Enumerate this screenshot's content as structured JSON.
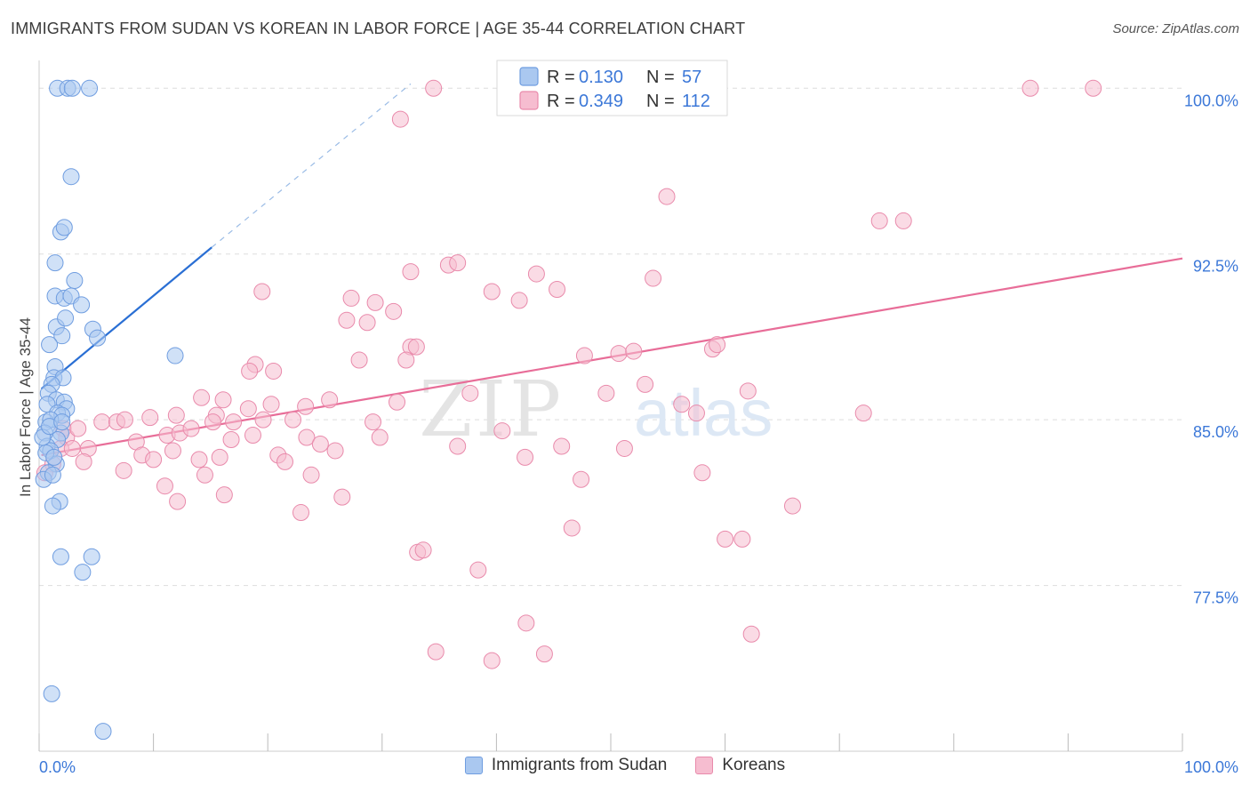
{
  "header": {
    "title": "IMMIGRANTS FROM SUDAN VS KOREAN IN LABOR FORCE | AGE 35-44 CORRELATION CHART",
    "source": "Source: ZipAtlas.com"
  },
  "watermark": {
    "zip": "ZIP",
    "atlas": "atlas"
  },
  "colors": {
    "blue_fill": "#aac8f0",
    "blue_stroke": "#6f9de0",
    "blue_line": "#2a6fd4",
    "pink_fill": "#f6bdd0",
    "pink_stroke": "#e98aab",
    "pink_line": "#e86d98",
    "axis_label": "#3c78d8",
    "grid": "#dddddd"
  },
  "chart_data": {
    "type": "scatter",
    "title": "IMMIGRANTS FROM SUDAN VS KOREAN IN LABOR FORCE | AGE 35-44 CORRELATION CHART",
    "xlabel": "",
    "ylabel": "In Labor Force | Age 35-44",
    "xlim": [
      0,
      100
    ],
    "ylim": [
      70.0,
      101.5
    ],
    "x_tick_labels": {
      "min": "0.0%",
      "max": "100.0%"
    },
    "y_ticks": [
      {
        "value": 100.0,
        "label": "100.0%"
      },
      {
        "value": 92.5,
        "label": "92.5%"
      },
      {
        "value": 85.0,
        "label": "85.0%"
      },
      {
        "value": 77.5,
        "label": "77.5%"
      }
    ],
    "legend_stats": [
      {
        "r_label": "R =",
        "r": "0.130",
        "n_label": "N =",
        "n": "57",
        "series": "Immigrants from Sudan"
      },
      {
        "r_label": "R =",
        "r": "0.349",
        "n_label": "N =",
        "n": "112",
        "series": "Koreans"
      }
    ],
    "series": [
      {
        "name": "Immigrants from Sudan",
        "color": "blue",
        "points": [
          [
            1.6,
            100.0
          ],
          [
            2.5,
            100.0
          ],
          [
            2.9,
            100.0
          ],
          [
            4.4,
            100.0
          ],
          [
            2.8,
            96.0
          ],
          [
            1.9,
            93.5
          ],
          [
            2.2,
            93.7
          ],
          [
            1.4,
            92.1
          ],
          [
            3.1,
            91.3
          ],
          [
            1.4,
            90.6
          ],
          [
            2.2,
            90.5
          ],
          [
            2.8,
            90.6
          ],
          [
            3.7,
            90.2
          ],
          [
            1.5,
            89.2
          ],
          [
            2.3,
            89.6
          ],
          [
            2.0,
            88.8
          ],
          [
            4.7,
            89.1
          ],
          [
            5.1,
            88.7
          ],
          [
            0.9,
            88.4
          ],
          [
            11.9,
            87.9
          ],
          [
            1.4,
            87.4
          ],
          [
            1.3,
            86.9
          ],
          [
            2.1,
            86.9
          ],
          [
            1.1,
            86.6
          ],
          [
            0.8,
            86.2
          ],
          [
            1.5,
            85.9
          ],
          [
            2.2,
            85.8
          ],
          [
            2.4,
            85.5
          ],
          [
            0.7,
            85.7
          ],
          [
            1.6,
            85.3
          ],
          [
            2.0,
            85.2
          ],
          [
            0.6,
            84.9
          ],
          [
            1.0,
            85.0
          ],
          [
            1.9,
            84.4
          ],
          [
            1.6,
            84.1
          ],
          [
            0.5,
            84.4
          ],
          [
            0.7,
            83.8
          ],
          [
            1.0,
            83.6
          ],
          [
            1.5,
            83.0
          ],
          [
            0.8,
            82.6
          ],
          [
            0.4,
            82.3
          ],
          [
            1.2,
            82.5
          ],
          [
            0.6,
            83.5
          ],
          [
            0.3,
            84.2
          ],
          [
            0.9,
            84.7
          ],
          [
            2.0,
            84.9
          ],
          [
            1.3,
            83.3
          ],
          [
            1.8,
            81.3
          ],
          [
            1.2,
            81.1
          ],
          [
            1.9,
            78.8
          ],
          [
            4.6,
            78.8
          ],
          [
            3.8,
            78.1
          ],
          [
            1.1,
            72.6
          ],
          [
            5.6,
            70.9
          ]
        ]
      },
      {
        "name": "Koreans",
        "color": "pink",
        "points": [
          [
            34.5,
            100.0
          ],
          [
            55.2,
            100.0
          ],
          [
            86.7,
            100.0
          ],
          [
            92.2,
            100.0
          ],
          [
            31.6,
            98.6
          ],
          [
            54.9,
            95.1
          ],
          [
            73.5,
            94.0
          ],
          [
            75.6,
            94.0
          ],
          [
            35.8,
            92.0
          ],
          [
            36.6,
            92.1
          ],
          [
            43.5,
            91.6
          ],
          [
            32.5,
            91.7
          ],
          [
            53.7,
            91.4
          ],
          [
            39.6,
            90.8
          ],
          [
            45.3,
            90.9
          ],
          [
            19.5,
            90.8
          ],
          [
            27.3,
            90.5
          ],
          [
            29.4,
            90.3
          ],
          [
            42.0,
            90.4
          ],
          [
            31.0,
            89.9
          ],
          [
            28.7,
            89.4
          ],
          [
            26.9,
            89.5
          ],
          [
            32.5,
            88.3
          ],
          [
            33.0,
            88.3
          ],
          [
            47.7,
            87.9
          ],
          [
            50.7,
            88.0
          ],
          [
            52.0,
            88.1
          ],
          [
            58.9,
            88.2
          ],
          [
            59.3,
            88.4
          ],
          [
            28.0,
            87.7
          ],
          [
            32.1,
            87.7
          ],
          [
            18.9,
            87.5
          ],
          [
            18.4,
            87.2
          ],
          [
            20.5,
            87.2
          ],
          [
            53.0,
            86.6
          ],
          [
            62.0,
            86.3
          ],
          [
            37.7,
            86.2
          ],
          [
            49.6,
            86.2
          ],
          [
            31.3,
            85.8
          ],
          [
            25.4,
            85.9
          ],
          [
            16.1,
            85.9
          ],
          [
            14.2,
            86.0
          ],
          [
            18.3,
            85.5
          ],
          [
            20.3,
            85.7
          ],
          [
            15.5,
            85.2
          ],
          [
            23.3,
            85.6
          ],
          [
            56.2,
            85.7
          ],
          [
            57.5,
            85.3
          ],
          [
            72.1,
            85.3
          ],
          [
            12.0,
            85.2
          ],
          [
            5.5,
            84.9
          ],
          [
            6.8,
            84.9
          ],
          [
            7.5,
            85.0
          ],
          [
            9.7,
            85.1
          ],
          [
            15.2,
            84.9
          ],
          [
            17.0,
            84.9
          ],
          [
            19.6,
            85.0
          ],
          [
            22.2,
            85.0
          ],
          [
            29.2,
            84.9
          ],
          [
            23.4,
            84.2
          ],
          [
            29.8,
            84.2
          ],
          [
            8.5,
            84.0
          ],
          [
            11.2,
            84.3
          ],
          [
            12.3,
            84.4
          ],
          [
            13.3,
            84.6
          ],
          [
            16.8,
            84.1
          ],
          [
            18.7,
            84.3
          ],
          [
            24.6,
            83.9
          ],
          [
            25.9,
            83.6
          ],
          [
            40.5,
            84.5
          ],
          [
            2.1,
            84.6
          ],
          [
            2.4,
            84.2
          ],
          [
            3.4,
            84.6
          ],
          [
            1.9,
            83.7
          ],
          [
            2.9,
            83.7
          ],
          [
            4.3,
            83.7
          ],
          [
            9.0,
            83.4
          ],
          [
            10.0,
            83.2
          ],
          [
            11.7,
            83.6
          ],
          [
            14.0,
            83.2
          ],
          [
            15.8,
            83.3
          ],
          [
            20.9,
            83.4
          ],
          [
            21.5,
            83.1
          ],
          [
            36.6,
            83.8
          ],
          [
            45.7,
            83.8
          ],
          [
            51.2,
            83.7
          ],
          [
            3.9,
            83.1
          ],
          [
            1.2,
            83.0
          ],
          [
            0.5,
            82.6
          ],
          [
            7.4,
            82.7
          ],
          [
            11.0,
            82.0
          ],
          [
            14.5,
            82.5
          ],
          [
            23.8,
            82.5
          ],
          [
            47.4,
            82.3
          ],
          [
            58.0,
            82.6
          ],
          [
            12.1,
            81.3
          ],
          [
            16.2,
            81.6
          ],
          [
            26.5,
            81.5
          ],
          [
            22.9,
            80.8
          ],
          [
            65.9,
            81.1
          ],
          [
            46.6,
            80.1
          ],
          [
            60.0,
            79.6
          ],
          [
            61.5,
            79.6
          ],
          [
            33.1,
            79.0
          ],
          [
            33.6,
            79.1
          ],
          [
            38.4,
            78.2
          ],
          [
            42.6,
            75.8
          ],
          [
            62.3,
            75.3
          ],
          [
            34.7,
            74.5
          ],
          [
            39.6,
            74.1
          ],
          [
            44.2,
            74.4
          ],
          [
            42.5,
            83.3
          ]
        ]
      }
    ],
    "trendlines": [
      {
        "series": "Immigrants from Sudan",
        "solid_from": [
          0.2,
          86.4
        ],
        "solid_to": [
          15.1,
          92.8
        ],
        "dashed_to": [
          32.5,
          100.2
        ]
      },
      {
        "series": "Koreans",
        "from": [
          0.2,
          83.4
        ],
        "to": [
          100.0,
          92.3
        ]
      }
    ]
  },
  "bottom_legend": [
    {
      "label": "Immigrants from Sudan",
      "color": "blue"
    },
    {
      "label": "Koreans",
      "color": "pink"
    }
  ]
}
